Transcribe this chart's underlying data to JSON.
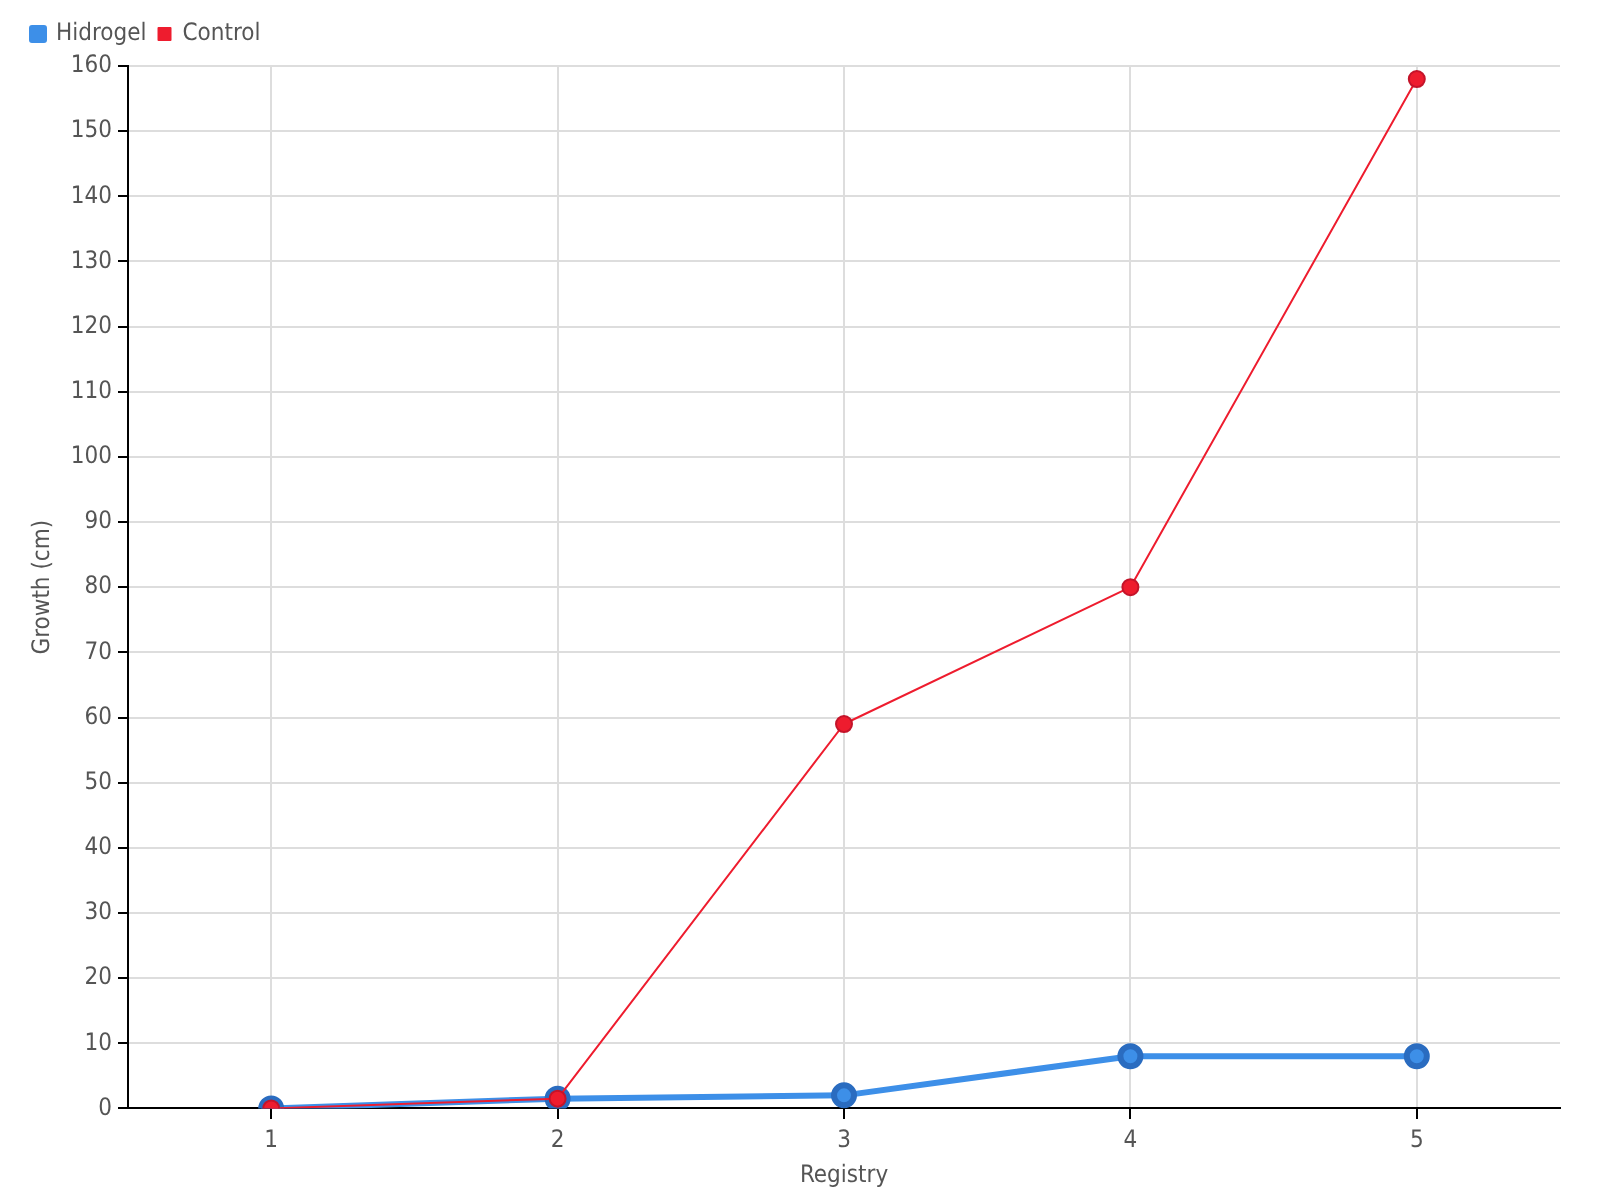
{
  "chart_data": {
    "type": "line",
    "xlabel": "Registry",
    "ylabel": "Growth (cm)",
    "x": [
      1,
      2,
      3,
      4,
      5
    ],
    "series": [
      {
        "name": "Hidrogel",
        "color": "#3d8fe8",
        "values": [
          0,
          1.5,
          2,
          8,
          8
        ]
      },
      {
        "name": "Control",
        "color": "#ee1c2e",
        "values": [
          0,
          1.5,
          59,
          80,
          158
        ]
      }
    ],
    "xlim": [
      0.5,
      5.5
    ],
    "xticks": [
      1,
      2,
      3,
      4,
      5
    ],
    "ylim": [
      0,
      160
    ],
    "yticks": [
      0,
      10,
      20,
      30,
      40,
      50,
      60,
      70,
      80,
      90,
      100,
      110,
      120,
      130,
      140,
      150,
      160
    ],
    "grid": true,
    "legend": "top left",
    "marker": "circle",
    "line_style": "solid"
  }
}
